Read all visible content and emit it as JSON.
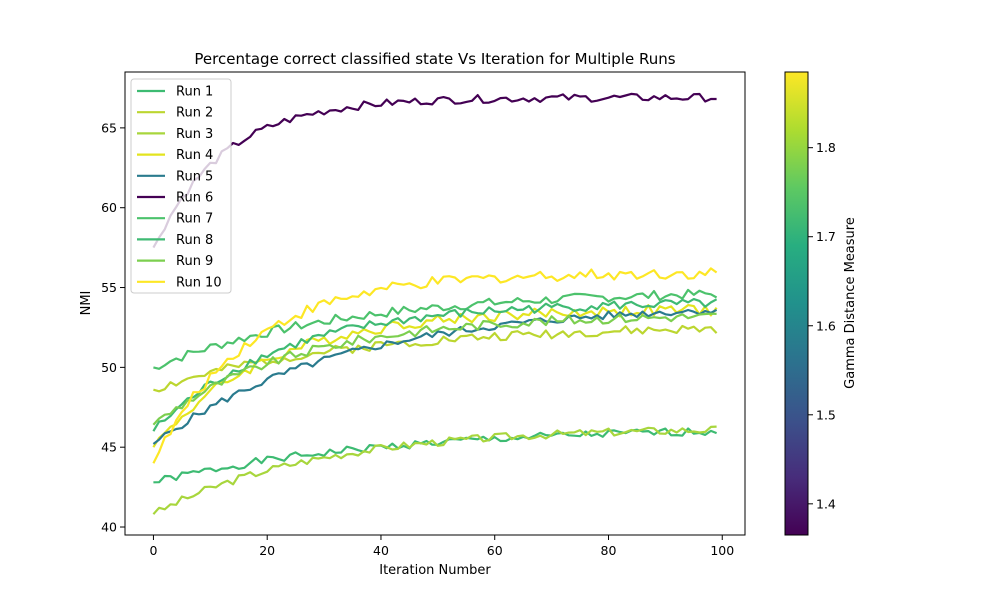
{
  "chart_data": {
    "type": "line",
    "title": "Percentage correct classified state Vs Iteration for Multiple Runs",
    "xlabel": "Iteration Number",
    "ylabel": "NMI",
    "xlim": [
      -5,
      104
    ],
    "ylim": [
      39.5,
      68.5
    ],
    "xticks": [
      0,
      20,
      40,
      60,
      80,
      100
    ],
    "yticks": [
      40,
      45,
      50,
      55,
      60,
      65
    ],
    "grid": false,
    "legend_position": "top-left",
    "colorbar": {
      "label": "Gamma Distance Measure",
      "range": [
        1.365,
        1.885
      ],
      "ticks": [
        1.4,
        1.5,
        1.6,
        1.7,
        1.8
      ],
      "colormap": "viridis"
    },
    "series": [
      {
        "name": "Run 1",
        "color": "#3dbb72",
        "start": 42.8,
        "end": 46.0,
        "rate": 0.025,
        "amp": 0.25,
        "seed": 1
      },
      {
        "name": "Run 2",
        "color": "#bcd630",
        "start": 48.6,
        "end": 52.4,
        "rate": 0.03,
        "amp": 0.3,
        "seed": 2
      },
      {
        "name": "Run 3",
        "color": "#a8d63d",
        "start": 40.8,
        "end": 46.1,
        "rate": 0.035,
        "amp": 0.25,
        "seed": 3
      },
      {
        "name": "Run 4",
        "color": "#e3e41e",
        "start": 45.0,
        "end": 53.6,
        "rate": 0.05,
        "amp": 0.35,
        "seed": 4
      },
      {
        "name": "Run 5",
        "color": "#2a7b8e",
        "start": 45.2,
        "end": 53.6,
        "rate": 0.03,
        "amp": 0.25,
        "seed": 5
      },
      {
        "name": "Run 6",
        "color": "#440154",
        "start": 57.5,
        "end": 66.9,
        "rate": 0.08,
        "amp": 0.25,
        "seed": 6
      },
      {
        "name": "Run 7",
        "color": "#4cc26c",
        "start": 50.0,
        "end": 54.6,
        "rate": 0.03,
        "amp": 0.3,
        "seed": 7
      },
      {
        "name": "Run 8",
        "color": "#3fba73",
        "start": 46.0,
        "end": 54.0,
        "rate": 0.045,
        "amp": 0.3,
        "seed": 8
      },
      {
        "name": "Run 9",
        "color": "#7ccf4f",
        "start": 46.4,
        "end": 53.2,
        "rate": 0.04,
        "amp": 0.3,
        "seed": 9
      },
      {
        "name": "Run 10",
        "color": "#fde725",
        "start": 44.0,
        "end": 55.9,
        "rate": 0.06,
        "amp": 0.35,
        "seed": 10
      }
    ]
  }
}
